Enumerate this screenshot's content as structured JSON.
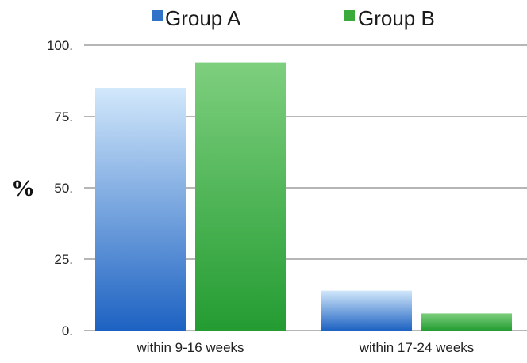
{
  "chart_data": {
    "type": "bar",
    "title": "",
    "xlabel": "",
    "ylabel": "%",
    "ylim": [
      0,
      100
    ],
    "yticks": [
      0,
      25,
      50,
      75,
      100
    ],
    "ytick_labels": [
      "0.",
      "25.",
      "50.",
      "75.",
      "100."
    ],
    "grid": true,
    "legend_position": "top",
    "categories": [
      "within 9-16 weeks",
      "within 17-24 weeks"
    ],
    "series": [
      {
        "name": "Group A",
        "values": [
          85,
          14
        ],
        "color": "#2f72c8",
        "gradient": [
          "#d2e8fb",
          "#1d62c2"
        ]
      },
      {
        "name": "Group B",
        "values": [
          94,
          6
        ],
        "color": "#3aaa3a",
        "gradient": [
          "#7ecf7e",
          "#249c32"
        ]
      }
    ]
  }
}
